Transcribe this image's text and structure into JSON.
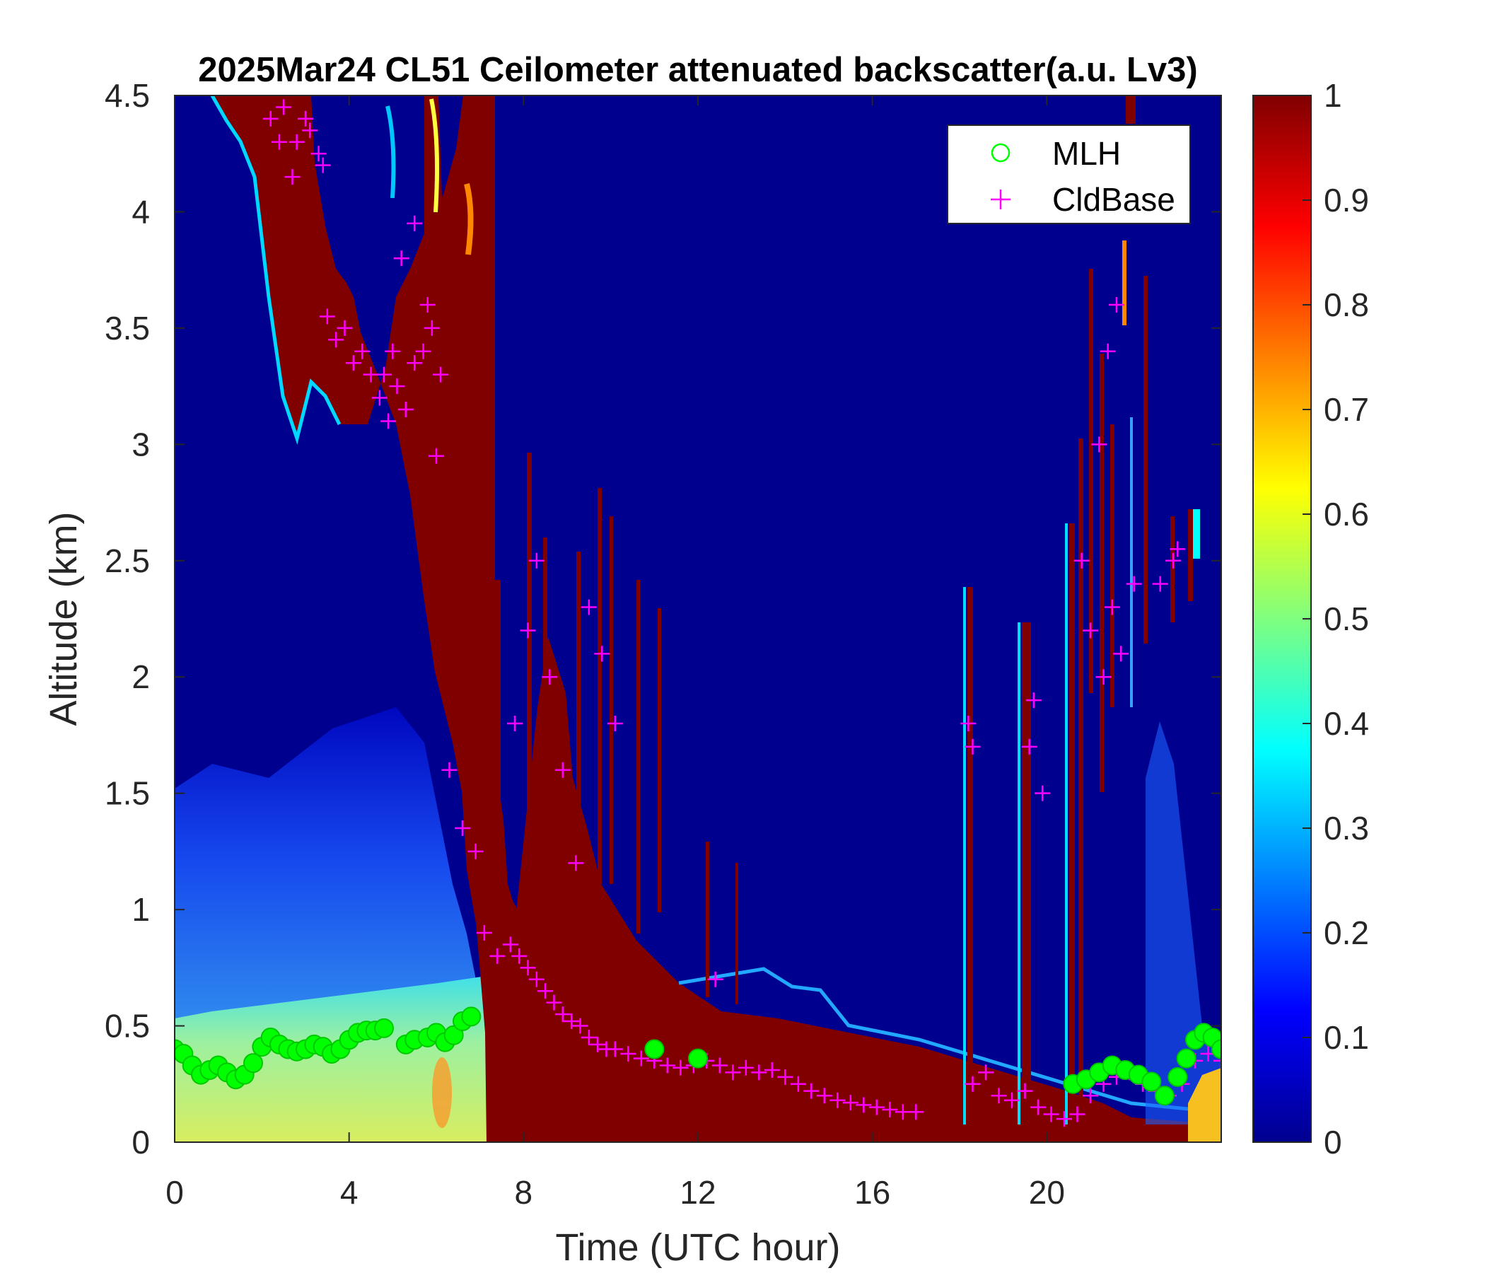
{
  "chart_data": {
    "type": "heatmap",
    "title": "2025Mar24 CL51 Ceilometer attenuated backscatter(a.u. Lv3)",
    "xlabel": "Time (UTC hour)",
    "ylabel": "Altitude (km)",
    "xlim": [
      0,
      24
    ],
    "ylim": [
      0,
      4.5
    ],
    "xticks": [
      "0",
      "4",
      "8",
      "12",
      "16",
      "20"
    ],
    "yticks": [
      "0",
      "0.5",
      "1",
      "1.5",
      "2",
      "2.5",
      "3",
      "3.5",
      "4",
      "4.5"
    ],
    "colorbar": {
      "colormap": "jet",
      "range": [
        0,
        1
      ],
      "ticks": [
        "0",
        "0.1",
        "0.2",
        "0.3",
        "0.4",
        "0.5",
        "0.6",
        "0.7",
        "0.8",
        "0.9",
        "1"
      ]
    },
    "legend": {
      "placement": "top-right",
      "entries": [
        {
          "name": "MLH",
          "marker": "circle",
          "color": "#00ff00"
        },
        {
          "name": "CldBase",
          "marker": "plus",
          "color": "#ff00ff"
        }
      ]
    },
    "series": [
      {
        "name": "MLH",
        "x": [
          0.0,
          0.2,
          0.4,
          0.6,
          0.8,
          1.0,
          1.2,
          1.4,
          1.6,
          1.8,
          2.0,
          2.2,
          2.4,
          2.6,
          2.8,
          3.0,
          3.2,
          3.4,
          3.6,
          3.8,
          4.0,
          4.2,
          4.4,
          4.6,
          4.8,
          5.3,
          5.5,
          5.8,
          6.0,
          6.2,
          6.4,
          6.6,
          6.8,
          11.0,
          12.0,
          20.6,
          20.9,
          21.2,
          21.5,
          21.8,
          22.1,
          22.4,
          22.7,
          23.0,
          23.2,
          23.4,
          23.6,
          23.8,
          24.0
        ],
        "y": [
          0.4,
          0.38,
          0.33,
          0.29,
          0.31,
          0.33,
          0.3,
          0.27,
          0.29,
          0.34,
          0.41,
          0.45,
          0.42,
          0.4,
          0.39,
          0.4,
          0.42,
          0.41,
          0.38,
          0.4,
          0.44,
          0.47,
          0.48,
          0.48,
          0.49,
          0.42,
          0.44,
          0.45,
          0.47,
          0.43,
          0.46,
          0.52,
          0.54,
          0.4,
          0.36,
          0.25,
          0.27,
          0.3,
          0.33,
          0.31,
          0.29,
          0.26,
          0.2,
          0.28,
          0.36,
          0.44,
          0.47,
          0.45,
          0.4
        ]
      },
      {
        "name": "CldBase",
        "x": [
          2.2,
          2.5,
          2.8,
          3.1,
          3.4,
          2.4,
          2.7,
          3.0,
          3.3,
          3.5,
          3.7,
          3.9,
          4.1,
          4.3,
          4.5,
          4.7,
          4.9,
          5.1,
          5.3,
          5.5,
          5.7,
          5.9,
          6.1,
          5.2,
          5.5,
          5.8,
          4.8,
          5.0,
          6.0,
          6.3,
          6.6,
          6.9,
          7.1,
          7.4,
          7.7,
          7.9,
          8.1,
          8.3,
          8.5,
          8.7,
          8.9,
          9.1,
          9.3,
          9.5,
          9.7,
          9.9,
          10.1,
          10.4,
          10.7,
          11.0,
          11.3,
          11.6,
          11.9,
          12.2,
          12.5,
          12.8,
          13.1,
          13.4,
          13.7,
          14.0,
          14.3,
          14.6,
          14.9,
          15.2,
          15.5,
          15.8,
          16.1,
          16.4,
          16.7,
          17.0,
          18.3,
          18.6,
          18.9,
          19.2,
          19.5,
          19.8,
          20.1,
          20.4,
          20.7,
          21.0,
          21.3,
          21.6,
          21.9,
          22.2,
          22.5,
          22.8,
          23.1,
          23.4,
          23.7,
          24.0,
          7.8,
          8.1,
          8.3,
          8.6,
          8.9,
          9.2,
          9.5,
          9.8,
          10.1,
          12.4,
          18.2,
          18.3,
          19.6,
          19.7,
          19.9,
          20.8,
          21.0,
          21.3,
          21.5,
          21.7,
          22.0,
          21.2,
          21.4,
          21.6,
          22.6,
          22.9,
          23.0
        ],
        "y": [
          4.4,
          4.45,
          4.3,
          4.35,
          4.2,
          4.3,
          4.15,
          4.4,
          4.25,
          3.55,
          3.45,
          3.5,
          3.35,
          3.4,
          3.3,
          3.2,
          3.1,
          3.25,
          3.15,
          3.35,
          3.4,
          3.5,
          3.3,
          3.8,
          3.95,
          3.6,
          3.3,
          3.4,
          2.95,
          1.6,
          1.35,
          1.25,
          0.9,
          0.8,
          0.85,
          0.8,
          0.75,
          0.7,
          0.65,
          0.6,
          0.55,
          0.52,
          0.5,
          0.45,
          0.42,
          0.4,
          0.4,
          0.38,
          0.36,
          0.35,
          0.33,
          0.32,
          0.33,
          0.35,
          0.33,
          0.3,
          0.32,
          0.3,
          0.31,
          0.28,
          0.25,
          0.22,
          0.2,
          0.18,
          0.17,
          0.16,
          0.15,
          0.14,
          0.13,
          0.13,
          0.25,
          0.3,
          0.2,
          0.18,
          0.22,
          0.15,
          0.12,
          0.1,
          0.12,
          0.2,
          0.25,
          0.28,
          0.3,
          0.25,
          0.22,
          0.2,
          0.25,
          0.35,
          0.38,
          0.35,
          1.8,
          2.2,
          2.5,
          2.0,
          1.6,
          1.2,
          2.3,
          2.1,
          1.8,
          0.7,
          1.8,
          1.7,
          1.7,
          1.9,
          1.5,
          2.5,
          2.2,
          2.0,
          2.3,
          2.1,
          2.4,
          3.0,
          3.4,
          3.6,
          2.4,
          2.5,
          2.55
        ]
      }
    ]
  }
}
